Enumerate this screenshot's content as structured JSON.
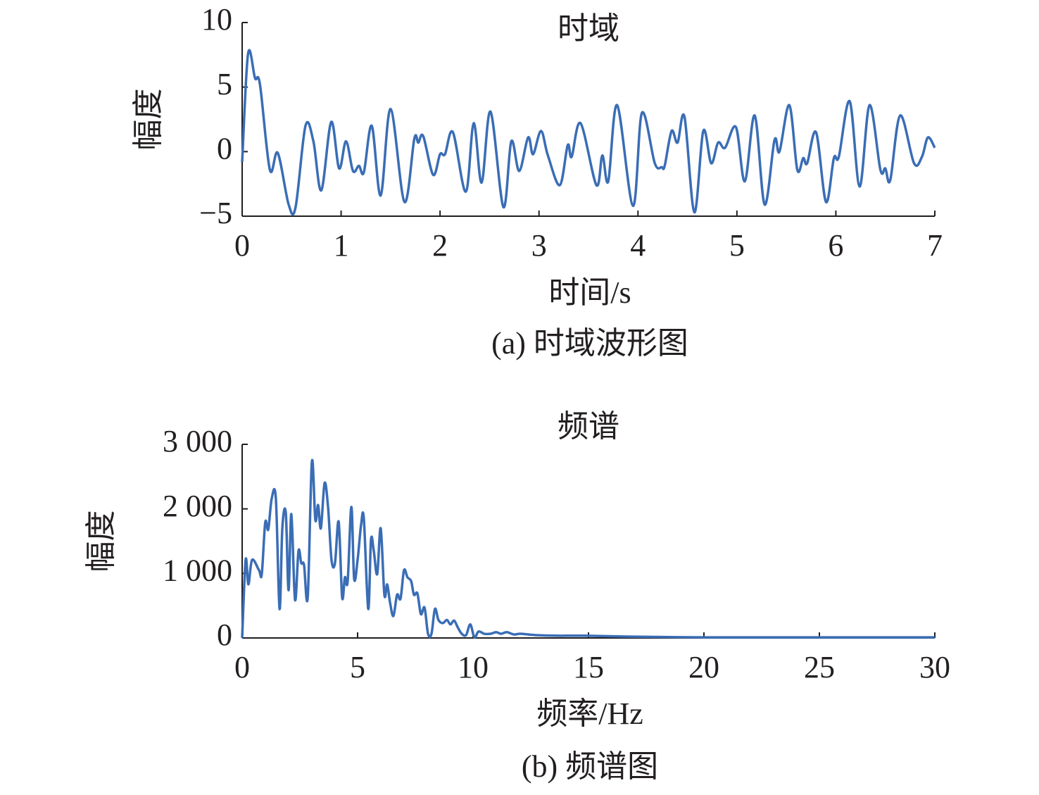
{
  "chart_data": [
    {
      "type": "line",
      "title": "时域",
      "xlabel": "时间/s",
      "ylabel": "幅度",
      "caption": "(a) 时域波形图",
      "color": "#3a6db5",
      "xlim": [
        0,
        7
      ],
      "ylim": [
        -5,
        10
      ],
      "xticks": [
        0,
        1,
        2,
        3,
        4,
        5,
        6,
        7
      ],
      "yticks": [
        {
          "value": -5,
          "label": "−5"
        },
        0,
        5,
        10
      ],
      "x": [
        0,
        0.06,
        0.13,
        0.18,
        0.28,
        0.36,
        0.47,
        0.54,
        0.64,
        0.72,
        0.8,
        0.9,
        0.98,
        1.05,
        1.12,
        1.18,
        1.23,
        1.31,
        1.4,
        1.5,
        1.64,
        1.74,
        1.78,
        1.83,
        1.93,
        2.0,
        2.05,
        2.13,
        2.26,
        2.34,
        2.42,
        2.51,
        2.64,
        2.72,
        2.8,
        2.89,
        2.94,
        3.02,
        3.09,
        3.21,
        3.29,
        3.33,
        3.42,
        3.58,
        3.64,
        3.7,
        3.79,
        3.95,
        4.04,
        4.17,
        4.24,
        4.27,
        4.34,
        4.4,
        4.47,
        4.57,
        4.66,
        4.74,
        4.81,
        4.88,
        4.99,
        5.08,
        5.18,
        5.28,
        5.38,
        5.43,
        5.53,
        5.61,
        5.67,
        5.71,
        5.8,
        5.9,
        5.98,
        6.03,
        6.14,
        6.24,
        6.34,
        6.45,
        6.5,
        6.55,
        6.65,
        6.79,
        6.87,
        6.93,
        7.0
      ],
      "values": [
        -0.8,
        7.6,
        5.7,
        5.2,
        -1.4,
        -0.1,
        -4.1,
        -4.3,
        2.0,
        0.8,
        -3.0,
        2.3,
        -1.3,
        0.8,
        -1.5,
        -1.1,
        -1.6,
        2.0,
        -3.4,
        3.3,
        -3.9,
        1.0,
        0.7,
        1.2,
        -1.8,
        -0.2,
        -0.2,
        1.5,
        -3.1,
        2.2,
        -2.4,
        3.1,
        -4.3,
        0.8,
        -1.5,
        1.1,
        -0.2,
        1.6,
        -0.3,
        -2.6,
        0.5,
        -0.4,
        2.2,
        -2.6,
        -0.3,
        -2.3,
        3.6,
        -4.2,
        3.0,
        -0.9,
        -1.2,
        -1.1,
        1.6,
        0.7,
        2.7,
        -4.7,
        1.6,
        -0.9,
        0.7,
        0.3,
        1.9,
        -2.3,
        2.8,
        -4.1,
        0.9,
        0.0,
        3.6,
        -1.4,
        -0.5,
        -0.9,
        1.5,
        -3.9,
        -0.5,
        -0.4,
        3.9,
        -2.7,
        3.6,
        -1.4,
        -1.3,
        -2.2,
        2.8,
        -0.9,
        -0.4,
        1.1,
        0.3
      ]
    },
    {
      "type": "line",
      "title": "频谱",
      "xlabel": "频率/Hz",
      "ylabel": "幅度",
      "caption": "(b) 频谱图",
      "color": "#3a6db5",
      "xlim": [
        0,
        30
      ],
      "ylim": [
        0,
        3000
      ],
      "xticks": [
        0,
        5,
        10,
        15,
        20,
        25,
        30
      ],
      "yticks": [
        0,
        {
          "value": 1000,
          "label": "1 000"
        },
        {
          "value": 2000,
          "label": "2 000"
        },
        {
          "value": 3000,
          "label": "3 000"
        }
      ],
      "x": [
        0,
        0.15,
        0.27,
        0.43,
        0.73,
        0.85,
        1.0,
        1.13,
        1.28,
        1.46,
        1.62,
        1.74,
        1.89,
        2.01,
        2.13,
        2.29,
        2.44,
        2.56,
        2.68,
        2.84,
        3.02,
        3.17,
        3.29,
        3.41,
        3.57,
        3.72,
        3.87,
        4.02,
        4.18,
        4.33,
        4.45,
        4.57,
        4.73,
        4.85,
        5.0,
        5.15,
        5.27,
        5.46,
        5.58,
        5.7,
        5.85,
        6.0,
        6.16,
        6.28,
        6.4,
        6.55,
        6.71,
        6.86,
        7.01,
        7.16,
        7.32,
        7.44,
        7.59,
        7.74,
        7.9,
        8.05,
        8.2,
        8.35,
        8.5,
        8.69,
        8.87,
        9.02,
        9.18,
        9.33,
        9.51,
        9.7,
        9.88,
        10.06,
        10.24,
        10.49,
        10.76,
        11.0,
        11.22,
        11.46,
        11.77,
        12.07,
        12.68,
        13.6,
        14.8,
        16.95,
        20,
        23,
        26.1,
        30
      ],
      "values": [
        0,
        1210,
        830,
        1210,
        1050,
        990,
        1790,
        1680,
        2160,
        2160,
        450,
        1700,
        1940,
        740,
        1920,
        590,
        1350,
        1160,
        1130,
        630,
        2730,
        1830,
        2060,
        1700,
        2400,
        2030,
        1210,
        1160,
        1800,
        630,
        940,
        880,
        2030,
        920,
        1210,
        1750,
        1850,
        450,
        1520,
        1350,
        990,
        1700,
        670,
        830,
        560,
        340,
        670,
        610,
        1050,
        940,
        880,
        670,
        690,
        370,
        470,
        65,
        65,
        450,
        280,
        230,
        280,
        210,
        270,
        170,
        65,
        45,
        210,
        10,
        100,
        65,
        65,
        90,
        65,
        90,
        55,
        65,
        45,
        35,
        35,
        20,
        10,
        10,
        10,
        10
      ]
    }
  ]
}
